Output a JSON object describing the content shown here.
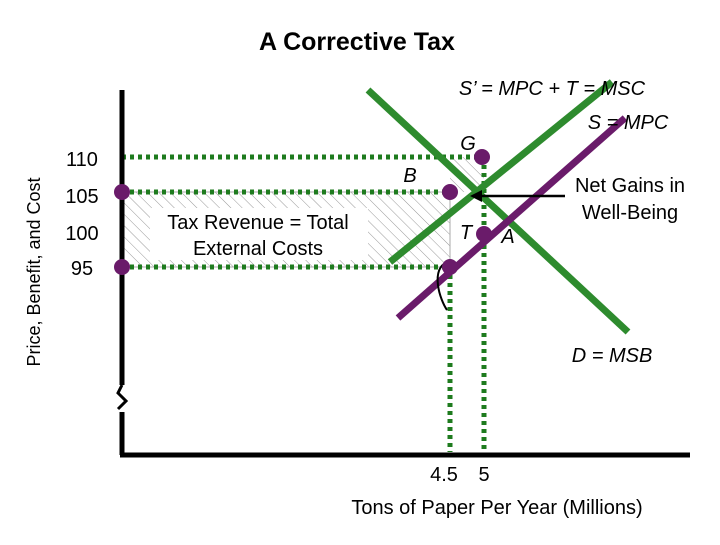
{
  "header": {
    "title": "A Corrective Tax"
  },
  "axes": {
    "y_label": "Price, Benefit, and Cost",
    "x_label": "Tons of Paper Per Year (Millions)",
    "y_ticks": [
      "110",
      "105",
      "100",
      "95"
    ],
    "x_ticks": [
      "4.5",
      "5"
    ]
  },
  "curves": {
    "supply_social": "S’ = MPC + T = MSC",
    "supply_private": "S = MPC",
    "demand": "D = MSB"
  },
  "points": {
    "g": "G",
    "b": "B",
    "t": "T",
    "a": "A"
  },
  "annotations": {
    "tax_revenue": [
      "Tax Revenue = Total",
      "External Costs"
    ],
    "net_gains": [
      "Net Gains in",
      "Well-Being"
    ]
  }
}
